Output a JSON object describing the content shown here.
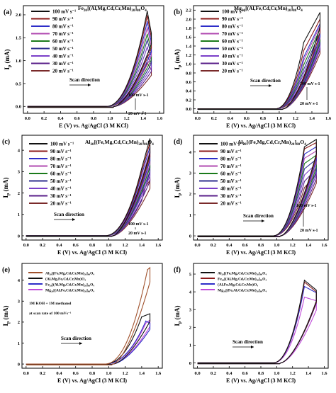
{
  "panels": [
    {
      "label": "(a)",
      "title_parts": [
        [
          "Fe",
          "20"
        ],
        [
          "[(Al,Mg,Cd,Cr,Mn)",
          "20"
        ],
        [
          "]",
          "80"
        ],
        [
          "O",
          "4"
        ]
      ],
      "xlabel": "E (V) vs. Ag/AgCl (3 M KCl)",
      "ylabel_main": "I",
      "ylabel_sub": "p",
      "ylabel_unit": " (mA)",
      "xticks": [
        "0.0",
        "0.2",
        "0.4",
        "0.6",
        "0.8",
        "1.0",
        "1.2",
        "1.4",
        "1.6"
      ],
      "yticks": [
        "0.0",
        "0.5",
        "1.0",
        "1.5",
        "2.0"
      ],
      "legend": [
        "100 mV s⁻¹",
        "90 mV s⁻¹",
        "80 mV s⁻¹",
        "70 mV s⁻¹",
        "60 mV s⁻¹",
        "50 mV s⁻¹",
        "40 mV s⁻¹",
        "30 mV s⁻¹",
        "20 mV s⁻¹"
      ],
      "scan_direction": "Scan direction",
      "note_high": "100 mV s-1",
      "note_low": "20 mV s-1"
    },
    {
      "label": "(b)",
      "title_parts": [
        [
          "Mg",
          "20"
        ],
        [
          "[(Al,Fe,Cd,Cr,Mn)",
          "20"
        ],
        [
          "]",
          "80"
        ],
        [
          "O",
          "4"
        ]
      ],
      "xlabel": "E (V) vs. Ag/AgCl (3 M KCl)",
      "ylabel_main": "I",
      "ylabel_sub": "p",
      "ylabel_unit": " (mA)",
      "xticks": [
        "0.0",
        "0.2",
        "0.4",
        "0.6",
        "0.8",
        "1.0",
        "1.2",
        "1.4",
        "1.6"
      ],
      "yticks": [
        "0.0",
        "0.2",
        "0.4",
        "0.6",
        "0.8",
        "1.0",
        "1.2",
        "1.4",
        "1.6",
        "1.8",
        "2.0",
        "2.2"
      ],
      "legend": [
        "100 mV s⁻¹",
        "90 mV s⁻¹",
        "80 mV s⁻¹",
        "70 mV s⁻¹",
        "60 mV s⁻¹",
        "50 mV s⁻¹",
        "40 mV s⁻¹",
        "30 mV s⁻¹",
        "20 mV s⁻¹"
      ],
      "scan_direction": "Scan direction",
      "note_high": "100 mV s-1",
      "note_low": "20 mV s-1"
    },
    {
      "label": "(c)",
      "title_parts": [
        [
          "Al",
          "20"
        ],
        [
          "[(Fe,Mg,Cd,Cr,Mn)",
          "20"
        ],
        [
          "]",
          "80"
        ],
        [
          "O",
          "4"
        ]
      ],
      "xlabel": "E (V) vs. Ag/AgCl (3 M KCl)",
      "ylabel_main": "I",
      "ylabel_sub": "p",
      "ylabel_unit": " (mA)",
      "xticks": [
        "0.0",
        "0.2",
        "0.4",
        "0.6",
        "0.8",
        "1.0",
        "1.2",
        "1.4",
        "1.6"
      ],
      "yticks": [
        "0",
        "1",
        "2",
        "3",
        "4"
      ],
      "legend": [
        "100 mV s⁻¹",
        "90 mV s⁻¹",
        "80 mV s⁻¹",
        "70 mV s⁻¹",
        "60 mV s⁻¹",
        "50 mV s⁻¹",
        "40 mV s⁻¹",
        "30 mV s⁻¹",
        "20 mV s⁻¹"
      ],
      "scan_direction": "Scan direction",
      "note_high": "100 mV s-1",
      "note_low": "20 mV s-1"
    },
    {
      "label": "(d)",
      "title_parts": [
        [
          "Al",
          "20"
        ],
        [
          "[(Fe,Mg,Cd,Cr,Mn)",
          "20"
        ],
        [
          "]",
          "80"
        ],
        [
          "O",
          "4"
        ]
      ],
      "xlabel": "E (V) vs. Ag/AgCl (3 M KCl)",
      "ylabel_main": "I",
      "ylabel_sub": "p",
      "ylabel_unit": " (mA)",
      "xticks": [
        "0.0",
        "0.2",
        "0.4",
        "0.6",
        "0.8",
        "1.0",
        "1.2",
        "1.4",
        "1.6"
      ],
      "yticks": [
        "0",
        "1",
        "2",
        "3",
        "4"
      ],
      "legend": [
        "100 mV s⁻¹",
        "90 mV s⁻¹",
        "80 mV s⁻¹",
        "70 mV s⁻¹",
        "60 mV s⁻¹",
        "50 mV s⁻¹",
        "40 mV s⁻¹",
        "30 mV s⁻¹",
        "20 mV s⁻¹"
      ],
      "scan_direction": "Scan direction",
      "note_high": "100 mV s-1",
      "note_low": "20 mV s-1"
    },
    {
      "label": "(e)",
      "xlabel": "E (V) vs. Ag/AgCl (3 M KCl)",
      "ylabel_main": "I",
      "ylabel_sub": "p",
      "ylabel_unit": " (mA)",
      "xticks": [
        "0.0",
        "0.2",
        "0.4",
        "0.6",
        "0.8",
        "1.0",
        "1.2",
        "1.4",
        "1.6"
      ],
      "yticks": [
        "0",
        "1",
        "2",
        "3",
        "4"
      ],
      "legend": [
        "Al₂₀[(Fe,Mg,Cd,Cr,Mn)₂₀]₈₀O₄",
        "(Al,Mg,Fe,Cd,Cr,Mn)O₄",
        "Fe₂₀[(Al,Mg,Cd,Cr,Mn)₂₀]₈₀O₄",
        "Mg₂₀[(Al,Fe,Cd,Cr,Mn)₂₀]₈₀O₄"
      ],
      "note_line1": "1M KOH + 1M methanol",
      "note_line2": "at scan rate of 100 mVs⁻¹",
      "scan_direction": "Scan direction"
    },
    {
      "label": "(f)",
      "xlabel": "E (V) vs. Ag/AgCl (3 M KCl)",
      "ylabel_main": "I",
      "ylabel_sub": "p",
      "ylabel_unit": " (mA)",
      "xticks": [
        "0.0",
        "0.2",
        "0.4",
        "0.6",
        "0.8",
        "1.0",
        "1.2",
        "1.4",
        "1.6"
      ],
      "yticks": [
        "0",
        "1",
        "2",
        "3",
        "4",
        "5"
      ],
      "legend": [
        "Al₂₀[(Fe,Mg,Cd,Cr,Mn)₂₀]₈₀O₄",
        "Fe₂₀[(Al,Mg,Cd,Cr,Mn)₂₀]₈₀O₄",
        "(Al,Fe,Mg,Cd,Cr,Mn)O₄",
        "Mg₂₀[(Fe,Al,Cd,Cr,Mn)₂₀]₈₀O₄"
      ],
      "scan_direction": "Scan direction"
    }
  ],
  "chart_data": [
    {
      "type": "line",
      "panel": "(a)",
      "xlim": [
        -0.05,
        1.65
      ],
      "ylim": [
        -0.15,
        2.2
      ],
      "series_colors": [
        "#111111",
        "#8b1a1a",
        "#2d2dc8",
        "#b04ab0",
        "#1a7a1a",
        "#2f2f8f",
        "#7a3fc8",
        "#5a1f8a",
        "#7a2a2a"
      ],
      "series": [
        {
          "name": "100 mV s⁻¹",
          "peak_x": 1.45,
          "peak_y": 2.08,
          "x_end": 1.5,
          "y_end": 1.6
        },
        {
          "name": "90 mV s⁻¹",
          "peak_x": 1.45,
          "peak_y": 1.98,
          "x_end": 1.5,
          "y_end": 1.5
        },
        {
          "name": "80 mV s⁻¹",
          "peak_x": 1.45,
          "peak_y": 1.85,
          "x_end": 1.5,
          "y_end": 1.4
        },
        {
          "name": "70 mV s⁻¹",
          "peak_x": 1.45,
          "peak_y": 1.72,
          "x_end": 1.5,
          "y_end": 1.3
        },
        {
          "name": "60 mV s⁻¹",
          "peak_x": 1.45,
          "peak_y": 1.58,
          "x_end": 1.5,
          "y_end": 1.2
        },
        {
          "name": "50 mV s⁻¹",
          "peak_x": 1.45,
          "peak_y": 1.45,
          "x_end": 1.5,
          "y_end": 1.1
        },
        {
          "name": "40 mV s⁻¹",
          "peak_x": 1.45,
          "peak_y": 1.3,
          "x_end": 1.5,
          "y_end": 1.0
        },
        {
          "name": "30 mV s⁻¹",
          "peak_x": 1.45,
          "peak_y": 1.12,
          "x_end": 1.5,
          "y_end": 0.9
        },
        {
          "name": "20 mV s⁻¹",
          "peak_x": 1.45,
          "peak_y": 0.95,
          "x_end": 1.5,
          "y_end": 0.8
        }
      ]
    },
    {
      "type": "line",
      "panel": "(b)",
      "xlim": [
        -0.05,
        1.6
      ],
      "ylim": [
        -0.1,
        2.3
      ],
      "series_colors": [
        "#111111",
        "#8b1a1a",
        "#2d2dc8",
        "#b04ab0",
        "#1a7a1a",
        "#2f2f8f",
        "#7a3fc8",
        "#5a1f8a",
        "#7a2a2a"
      ],
      "series": [
        {
          "name": "100 mV s⁻¹",
          "peak_x": 1.3,
          "peak_y": 1.48,
          "x_end": 1.5,
          "y_end": 2.15
        },
        {
          "name": "90 mV s⁻¹",
          "peak_x": 1.3,
          "peak_y": 1.3,
          "x_end": 1.5,
          "y_end": 2.0
        },
        {
          "name": "80 mV s⁻¹",
          "peak_x": 1.3,
          "peak_y": 1.15,
          "x_end": 1.5,
          "y_end": 1.9
        },
        {
          "name": "70 mV s⁻¹",
          "peak_x": 1.3,
          "peak_y": 1.08,
          "x_end": 1.5,
          "y_end": 1.85
        },
        {
          "name": "60 mV s⁻¹",
          "peak_x": 1.3,
          "peak_y": 0.98,
          "x_end": 1.5,
          "y_end": 1.78
        },
        {
          "name": "50 mV s⁻¹",
          "peak_x": 1.3,
          "peak_y": 0.88,
          "x_end": 1.5,
          "y_end": 1.7
        },
        {
          "name": "40 mV s⁻¹",
          "peak_x": 1.3,
          "peak_y": 0.8,
          "x_end": 1.5,
          "y_end": 1.62
        },
        {
          "name": "30 mV s⁻¹",
          "peak_x": 1.3,
          "peak_y": 0.7,
          "x_end": 1.5,
          "y_end": 1.55
        },
        {
          "name": "20 mV s⁻¹",
          "peak_x": 1.3,
          "peak_y": 0.55,
          "x_end": 1.5,
          "y_end": 1.45
        }
      ]
    },
    {
      "type": "line",
      "panel": "(c)",
      "xlim": [
        -0.05,
        1.65
      ],
      "ylim": [
        -0.2,
        4.7
      ],
      "series_colors": [
        "#111111",
        "#8b1a1a",
        "#2d2dc8",
        "#b04ab0",
        "#1a7a1a",
        "#2f2f8f",
        "#7a3fc8",
        "#5a1f8a",
        "#7a2a2a"
      ],
      "series": [
        {
          "name": "100 mV s⁻¹",
          "peak_x": 1.4,
          "peak_y": 3.15,
          "x_end": 1.5,
          "y_end": 4.55
        },
        {
          "name": "90 mV s⁻¹",
          "peak_x": 1.4,
          "peak_y": 3.0,
          "x_end": 1.5,
          "y_end": 4.35
        },
        {
          "name": "80 mV s⁻¹",
          "peak_x": 1.4,
          "peak_y": 2.85,
          "x_end": 1.5,
          "y_end": 4.15
        },
        {
          "name": "70 mV s⁻¹",
          "peak_x": 1.4,
          "peak_y": 2.65,
          "x_end": 1.5,
          "y_end": 3.95
        },
        {
          "name": "60 mV s⁻¹",
          "peak_x": 1.4,
          "peak_y": 2.45,
          "x_end": 1.5,
          "y_end": 3.75
        },
        {
          "name": "50 mV s⁻¹",
          "peak_x": 1.4,
          "peak_y": 2.25,
          "x_end": 1.5,
          "y_end": 3.55
        },
        {
          "name": "40 mV s⁻¹",
          "peak_x": 1.4,
          "peak_y": 2.0,
          "x_end": 1.5,
          "y_end": 3.3
        },
        {
          "name": "30 mV s⁻¹",
          "peak_x": 1.4,
          "peak_y": 1.65,
          "x_end": 1.5,
          "y_end": 3.0
        },
        {
          "name": "20 mV s⁻¹",
          "peak_x": 1.25,
          "peak_y": 1.1,
          "x_end": 1.5,
          "y_end": 2.6
        }
      ]
    },
    {
      "type": "line",
      "panel": "(d)",
      "xlim": [
        -0.05,
        1.65
      ],
      "ylim": [
        -0.2,
        4.8
      ],
      "series_colors": [
        "#111111",
        "#8b1a1a",
        "#2d2dc8",
        "#b04ab0",
        "#1a7a1a",
        "#2f2f8f",
        "#7a3fc8",
        "#5a1f8a",
        "#7a2a2a"
      ],
      "series": [
        {
          "name": "100 mV s⁻¹",
          "peak_x": 1.35,
          "peak_y": 4.25,
          "x_end": 1.5,
          "y_end": 4.6
        },
        {
          "name": "90 mV s⁻¹",
          "peak_x": 1.35,
          "peak_y": 4.15,
          "x_end": 1.5,
          "y_end": 4.45
        },
        {
          "name": "80 mV s⁻¹",
          "peak_x": 1.35,
          "peak_y": 3.9,
          "x_end": 1.5,
          "y_end": 4.25
        },
        {
          "name": "70 mV s⁻¹",
          "peak_x": 1.35,
          "peak_y": 3.7,
          "x_end": 1.5,
          "y_end": 4.05
        },
        {
          "name": "60 mV s⁻¹",
          "peak_x": 1.35,
          "peak_y": 3.45,
          "x_end": 1.5,
          "y_end": 3.85
        },
        {
          "name": "50 mV s⁻¹",
          "peak_x": 1.35,
          "peak_y": 3.2,
          "x_end": 1.5,
          "y_end": 3.65
        },
        {
          "name": "40 mV s⁻¹",
          "peak_x": 1.35,
          "peak_y": 2.9,
          "x_end": 1.5,
          "y_end": 3.45
        },
        {
          "name": "30 mV s⁻¹",
          "peak_x": 1.35,
          "peak_y": 2.6,
          "x_end": 1.5,
          "y_end": 3.2
        },
        {
          "name": "20 mV s⁻¹",
          "peak_x": 1.35,
          "peak_y": 2.3,
          "x_end": 1.5,
          "y_end": 2.95
        }
      ]
    },
    {
      "type": "line",
      "panel": "(e)",
      "xlim": [
        -0.05,
        1.65
      ],
      "ylim": [
        -0.2,
        4.8
      ],
      "series_colors": [
        "#a0522d",
        "#111111",
        "#2d2dc8",
        "#c04ad8"
      ],
      "series": [
        {
          "name": "Al₂₀[(Fe,Mg,Cd,Cr,Mn)₂₀]₈₀O₄",
          "peak_x": 1.47,
          "peak_y": 4.5,
          "x_end": 1.5,
          "y_end": 4.6
        },
        {
          "name": "(Al,Mg,Fe,Cd,Cr,Mn)O₄",
          "peak_x": 1.4,
          "peak_y": 2.25,
          "x_end": 1.5,
          "y_end": 2.4
        },
        {
          "name": "Fe₂₀[(Al,Mg,Cd,Cr,Mn)₂₀]₈₀O₄",
          "peak_x": 1.45,
          "peak_y": 2.05,
          "x_end": 1.5,
          "y_end": 1.95
        },
        {
          "name": "Mg₂₀[(Al,Fe,Cd,Cr,Mn)₂₀]₈₀O₄",
          "peak_x": 1.45,
          "peak_y": 1.95,
          "x_end": 1.5,
          "y_end": 2.1
        }
      ]
    },
    {
      "type": "line",
      "panel": "(f)",
      "xlim": [
        -0.05,
        1.65
      ],
      "ylim": [
        -0.3,
        5.6
      ],
      "series_colors": [
        "#111111",
        "#8b1a1a",
        "#2d2dc8",
        "#c04ad8"
      ],
      "series": [
        {
          "name": "Al₂₀[(Fe,Mg,Cd,Cr,Mn)₂₀]₈₀O₄",
          "peak_x": 1.35,
          "peak_y": 4.65,
          "x_end": 1.5,
          "y_end": 4.1
        },
        {
          "name": "Fe₂₀[(Al,Mg,Cd,Cr,Mn)₂₀]₈₀O₄",
          "peak_x": 1.35,
          "peak_y": 4.55,
          "x_end": 1.5,
          "y_end": 4.0
        },
        {
          "name": "(Al,Fe,Mg,Cd,Cr,Mn)O₄",
          "peak_x": 1.35,
          "peak_y": 4.3,
          "x_end": 1.5,
          "y_end": 3.95
        },
        {
          "name": "Mg₂₀[(Fe,Al,Cd,Cr,Mn)₂₀]₈₀O₄",
          "peak_x": 1.35,
          "peak_y": 3.7,
          "x_end": 1.5,
          "y_end": 3.5
        }
      ]
    }
  ]
}
